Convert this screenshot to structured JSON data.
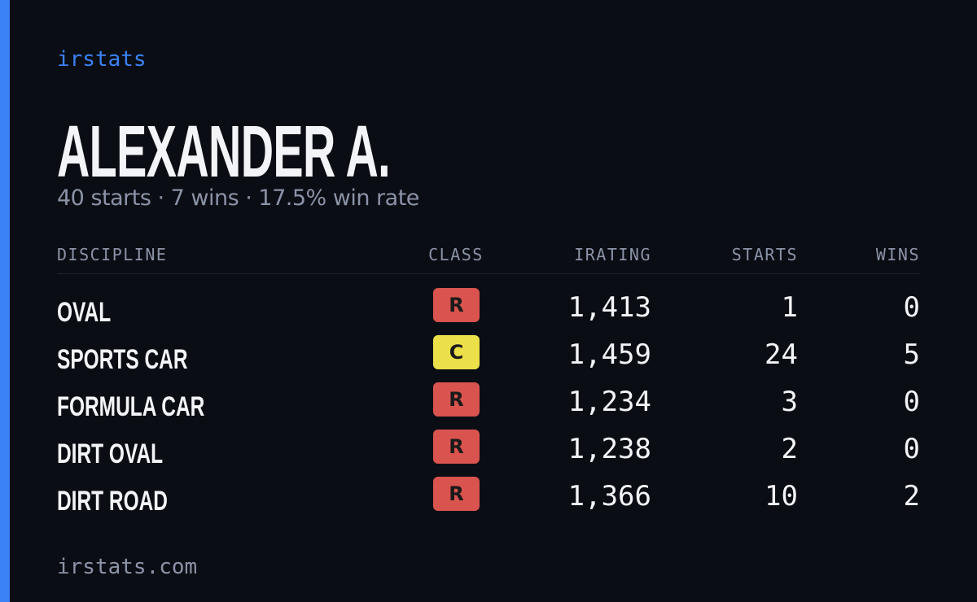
{
  "brand": "irstats",
  "driver": {
    "name": "ALEXANDER A.",
    "summary": "40 starts · 7 wins · 17.5% win rate"
  },
  "table": {
    "headers": [
      "DISCIPLINE",
      "CLASS",
      "IRATING",
      "STARTS",
      "WINS"
    ],
    "rows": [
      {
        "discipline": "OVAL",
        "class": "R",
        "badge_color": "#d9534f",
        "irating": "1,413",
        "starts": "1",
        "wins": "0"
      },
      {
        "discipline": "SPORTS CAR",
        "class": "C",
        "badge_color": "#ebe04a",
        "irating": "1,459",
        "starts": "24",
        "wins": "5"
      },
      {
        "discipline": "FORMULA CAR",
        "class": "R",
        "badge_color": "#d9534f",
        "irating": "1,234",
        "starts": "3",
        "wins": "0"
      },
      {
        "discipline": "DIRT OVAL",
        "class": "R",
        "badge_color": "#d9534f",
        "irating": "1,238",
        "starts": "2",
        "wins": "0"
      },
      {
        "discipline": "DIRT ROAD",
        "class": "R",
        "badge_color": "#d9534f",
        "irating": "1,366",
        "starts": "10",
        "wins": "2"
      }
    ]
  },
  "footer": "irstats.com"
}
